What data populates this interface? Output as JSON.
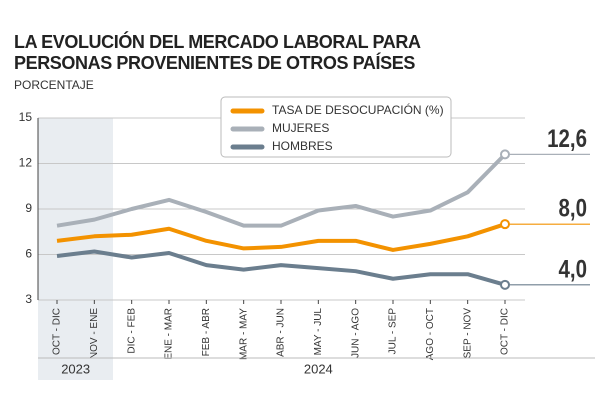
{
  "chart_data": {
    "type": "line",
    "title": "LA EVOLUCIÓN DEL MERCADO LABORAL PARA PERSONAS PROVENIENTES DE OTROS PAÍSES",
    "subtitle": "PORCENTAJE",
    "categories": [
      "OCT - DIC",
      "NOV - ENE",
      "DIC - FEB",
      "ENE - MAR",
      "FEB - ABR",
      "MAR - MAY",
      "ABR - JUN",
      "MAY - JUL",
      "JUN - AGO",
      "JUL - SEP",
      "AGO - OCT",
      "SEP - NOV",
      "OCT - DIC"
    ],
    "period_labels": [
      "2023",
      "2024"
    ],
    "series": [
      {
        "name": "TASA DE DESOCUPACIÓN (%)",
        "color": "#f39200",
        "values": [
          6.9,
          7.2,
          7.3,
          7.7,
          6.9,
          6.4,
          6.5,
          6.9,
          6.9,
          6.3,
          6.7,
          7.2,
          8.0
        ],
        "value_labels": [
          null,
          null,
          null,
          null,
          null,
          null,
          null,
          null,
          null,
          null,
          null,
          null,
          "8,0"
        ]
      },
      {
        "name": "MUJERES",
        "color": "#a9b0b8",
        "values": [
          7.9,
          8.3,
          9.0,
          9.6,
          8.8,
          7.9,
          7.9,
          8.9,
          9.2,
          8.5,
          8.9,
          10.1,
          12.6
        ],
        "value_labels": [
          null,
          null,
          null,
          null,
          null,
          null,
          null,
          null,
          null,
          null,
          null,
          null,
          "12,6"
        ]
      },
      {
        "name": "HOMBRES",
        "color": "#6b7e8e",
        "values": [
          5.9,
          6.2,
          5.8,
          6.1,
          5.3,
          5.0,
          5.3,
          5.1,
          4.9,
          4.4,
          4.7,
          4.7,
          4.0
        ],
        "value_labels": [
          null,
          null,
          null,
          null,
          null,
          null,
          null,
          null,
          null,
          null,
          null,
          null,
          "4,0"
        ]
      }
    ],
    "ylim": [
      3,
      15
    ],
    "yticks": [
      3,
      6,
      9,
      12,
      15
    ],
    "grid": true
  }
}
